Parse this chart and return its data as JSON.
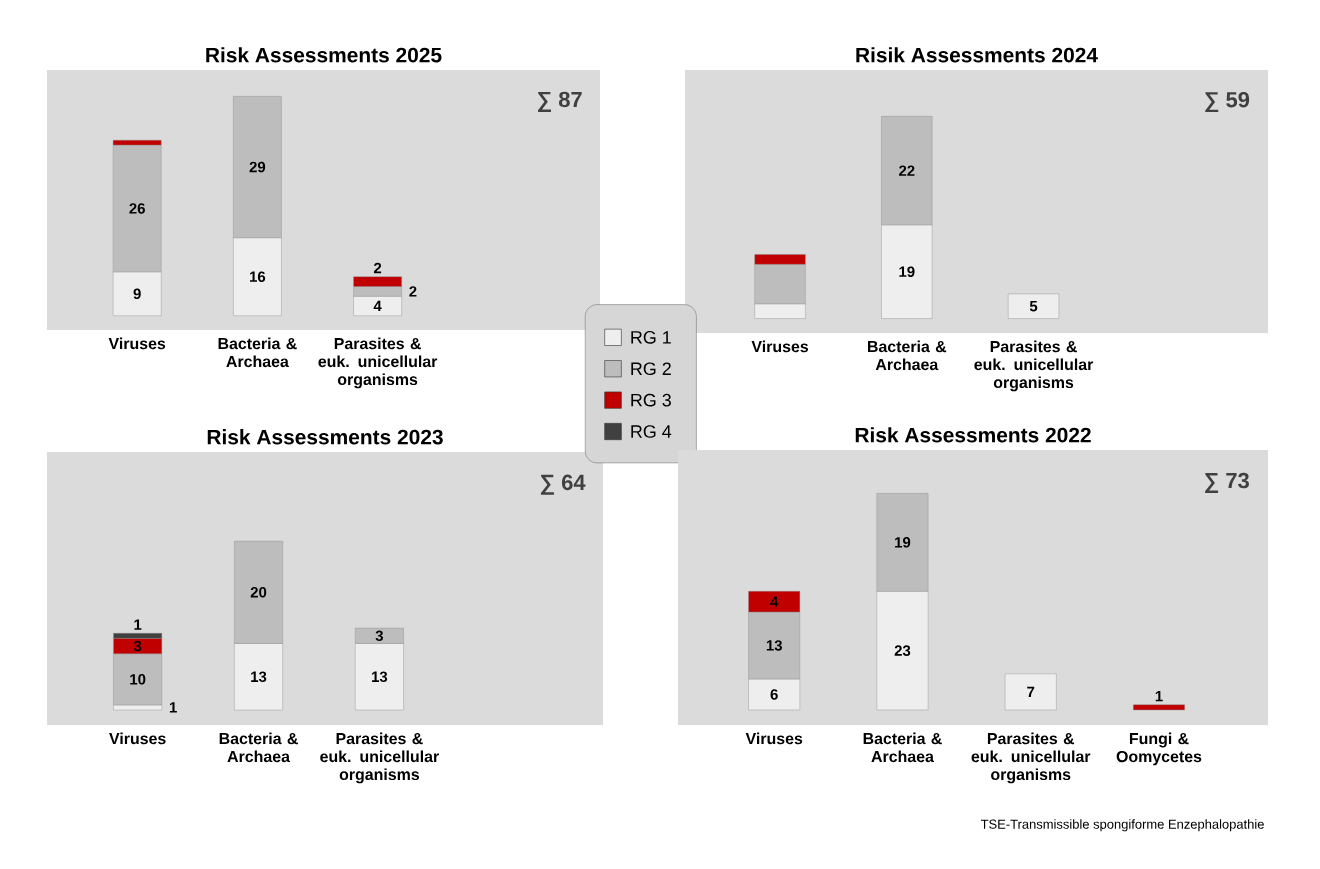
{
  "chart_data": [
    {
      "type": "bar",
      "stacked": true,
      "title": "Risk Assessments 2025",
      "categories": [
        "Viruses",
        "Bacteria & Archaea",
        "Parasites & euk. unicellular organisms"
      ],
      "series": [
        {
          "color": "#eeeeee",
          "values": [
            9,
            16,
            4
          ],
          "value_labels": [
            "9",
            "16",
            "4"
          ]
        },
        {
          "color": "#bdbdbd",
          "values": [
            26,
            29,
            2
          ],
          "value_labels": [
            "26",
            "29",
            "2"
          ]
        },
        {
          "color": "#c00000",
          "values": [
            1,
            null,
            2
          ],
          "value_labels": [
            null,
            null,
            "2"
          ]
        }
      ],
      "annotations": [
        "∑ 87"
      ]
    },
    {
      "type": "bar",
      "stacked": true,
      "title": "Risik Assessments 2024",
      "categories": [
        "Viruses",
        "Bacteria & Archaea",
        "Parasites & euk. unicellular organisms"
      ],
      "series": [
        {
          "color": "#eeeeee",
          "values": [
            3,
            19,
            5
          ],
          "value_labels": [
            null,
            "19",
            "5"
          ]
        },
        {
          "color": "#bdbdbd",
          "values": [
            8,
            22,
            null
          ],
          "value_labels": [
            null,
            "22",
            null
          ]
        },
        {
          "color": "#c00000",
          "values": [
            2,
            null,
            null
          ],
          "value_labels": [
            null,
            null,
            null
          ]
        }
      ],
      "annotations": [
        "∑ 59"
      ]
    },
    {
      "type": "bar",
      "stacked": true,
      "title": "Risk Assessments 2023",
      "categories": [
        "Viruses",
        "Bacteria & Archaea",
        "Parasites & euk. unicellular organisms"
      ],
      "legend": "top right",
      "series": [
        {
          "name": "RG 1",
          "color": "#eeeeee",
          "values": [
            1,
            13,
            13
          ],
          "value_labels": [
            "1",
            "13",
            "13"
          ]
        },
        {
          "name": "RG 2",
          "color": "#bdbdbd",
          "values": [
            10,
            20,
            3
          ],
          "value_labels": [
            "10",
            "20",
            "3"
          ]
        },
        {
          "name": "RG 3",
          "color": "#c00000",
          "values": [
            3,
            null,
            null
          ],
          "value_labels": [
            "3",
            null,
            null
          ]
        },
        {
          "name": "RG 4",
          "color": "#404040",
          "values": [
            1,
            null,
            null
          ],
          "value_labels": [
            "1",
            null,
            null
          ]
        }
      ],
      "annotations": [
        "∑ 64"
      ]
    },
    {
      "type": "bar",
      "stacked": true,
      "title": "Risk Assessments 2022",
      "categories": [
        "Viruses",
        "Bacteria & Archaea",
        "Parasites & euk. unicellular organisms",
        "Fungi & Oomycetes"
      ],
      "series": [
        {
          "color": "#eeeeee",
          "values": [
            6,
            23,
            7,
            null
          ],
          "value_labels": [
            "6",
            "23",
            "7",
            null
          ]
        },
        {
          "color": "#bdbdbd",
          "values": [
            13,
            19,
            null,
            null
          ],
          "value_labels": [
            "13",
            "19",
            null,
            null
          ]
        },
        {
          "color": "#c00000",
          "values": [
            4,
            null,
            null,
            1
          ],
          "value_labels": [
            "4",
            null,
            null,
            "1"
          ]
        }
      ],
      "annotations": [
        "∑ 73",
        "TSE-Transmissible spongiforme Enzephalopathie"
      ]
    }
  ]
}
